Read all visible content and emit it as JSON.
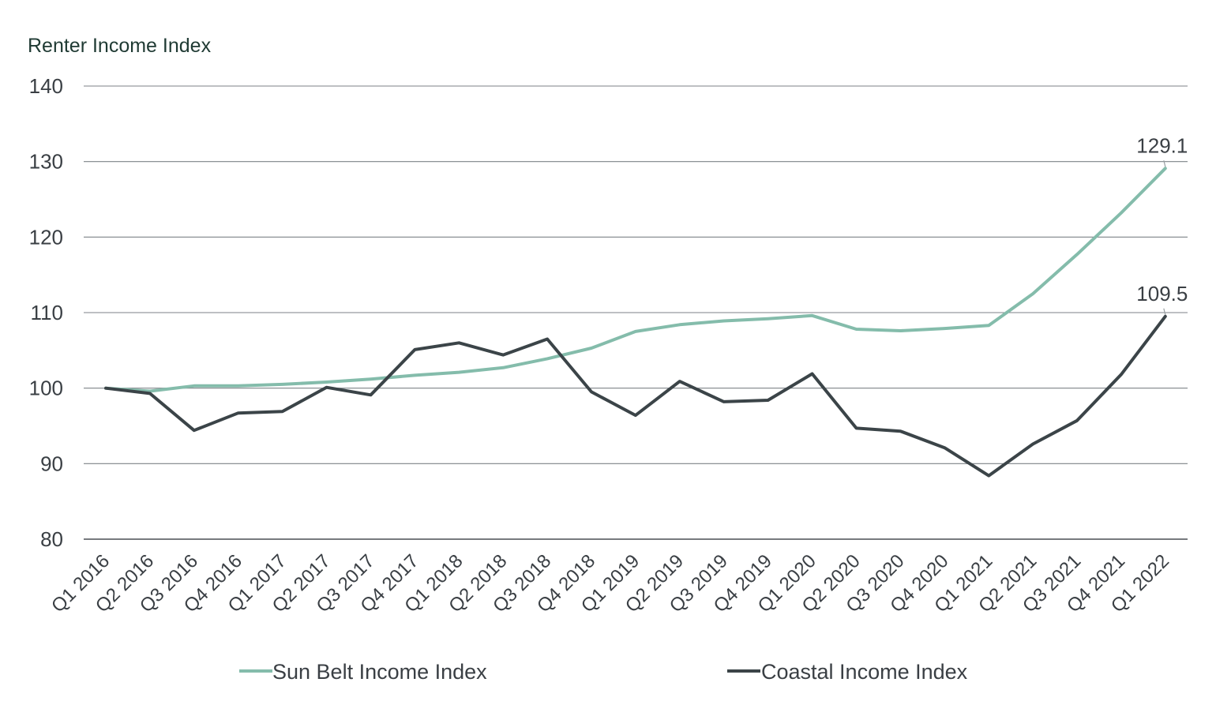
{
  "chart_data": {
    "type": "line",
    "ylabel": "Renter Income Index",
    "ylim": [
      80,
      140
    ],
    "yticks": [
      "80",
      "90",
      "100",
      "110",
      "120",
      "130",
      "140"
    ],
    "grid": "horizontal",
    "legend_position": "bottom",
    "categories": [
      "Q1 2016",
      "Q2 2016",
      "Q3 2016",
      "Q4 2016",
      "Q1 2017",
      "Q2 2017",
      "Q3 2017",
      "Q4 2017",
      "Q1 2018",
      "Q2 2018",
      "Q3 2018",
      "Q4 2018",
      "Q1 2019",
      "Q2 2019",
      "Q3 2019",
      "Q4 2019",
      "Q1 2020",
      "Q2 2020",
      "Q3 2020",
      "Q4 2020",
      "Q1 2021",
      "Q2 2021",
      "Q3 2021",
      "Q4 2021",
      "Q1 2022"
    ],
    "series": [
      {
        "name": "Sun Belt Income Index",
        "color": "#84bcab",
        "values": [
          100.0,
          99.6,
          100.3,
          100.3,
          100.5,
          100.8,
          101.2,
          101.7,
          102.1,
          102.7,
          103.9,
          105.3,
          107.5,
          108.4,
          108.9,
          109.2,
          109.6,
          107.8,
          107.6,
          107.9,
          108.3,
          112.5,
          117.7,
          123.2,
          129.1
        ],
        "end_label": "129.1"
      },
      {
        "name": "Coastal Income Index",
        "color": "#3b4448",
        "values": [
          100.0,
          99.3,
          94.4,
          96.7,
          96.9,
          100.1,
          99.1,
          105.1,
          106.0,
          104.4,
          106.5,
          99.5,
          96.4,
          100.9,
          98.2,
          98.4,
          101.9,
          94.7,
          94.3,
          92.1,
          88.4,
          92.6,
          95.7,
          101.8,
          109.5
        ],
        "end_label": "109.5"
      }
    ]
  }
}
